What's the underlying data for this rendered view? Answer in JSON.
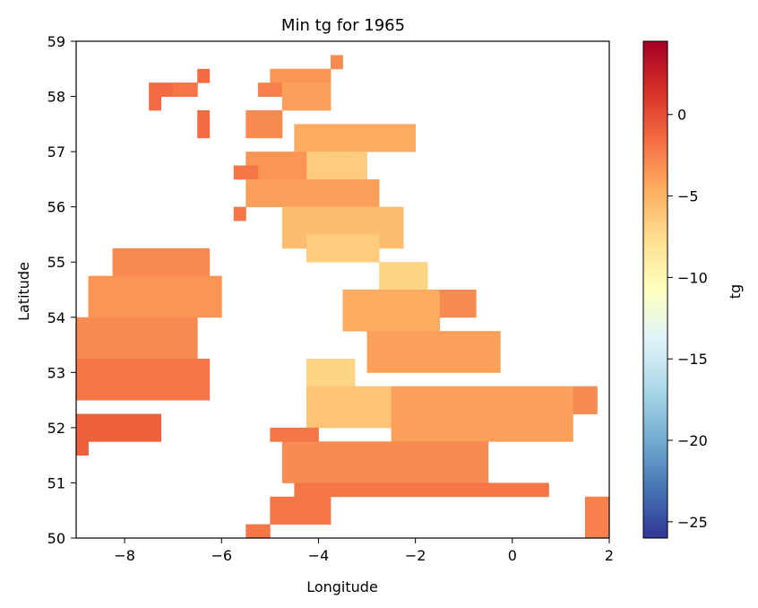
{
  "chart_data": {
    "type": "heatmap",
    "title": "Min tg for 1965",
    "xlabel": "Longitude",
    "ylabel": "Latitude",
    "xlim": [
      -9,
      2
    ],
    "ylim": [
      50,
      59
    ],
    "cell_size_deg": 0.25,
    "xticks": [
      {
        "value": -8,
        "label": "−8"
      },
      {
        "value": -6,
        "label": "−6"
      },
      {
        "value": -4,
        "label": "−4"
      },
      {
        "value": -2,
        "label": "−2"
      },
      {
        "value": 0,
        "label": "0"
      },
      {
        "value": 2,
        "label": "2"
      }
    ],
    "yticks": [
      {
        "value": 50,
        "label": "50"
      },
      {
        "value": 51,
        "label": "51"
      },
      {
        "value": 52,
        "label": "52"
      },
      {
        "value": 53,
        "label": "53"
      },
      {
        "value": 54,
        "label": "54"
      },
      {
        "value": 55,
        "label": "55"
      },
      {
        "value": 56,
        "label": "56"
      },
      {
        "value": 57,
        "label": "57"
      },
      {
        "value": 58,
        "label": "58"
      },
      {
        "value": 59,
        "label": "59"
      }
    ],
    "colorbar": {
      "label": "tg",
      "colormap": "RdYlBu_r",
      "vmin": -26,
      "vmax": 4.5,
      "ticks": [
        {
          "value": 0,
          "label": "0"
        },
        {
          "value": -5,
          "label": "−5"
        },
        {
          "value": -10,
          "label": "−10"
        },
        {
          "value": -15,
          "label": "−15"
        },
        {
          "value": -20,
          "label": "−20"
        },
        {
          "value": -25,
          "label": "−25"
        }
      ]
    },
    "grid": false,
    "cells": [
      {
        "lon_range": [
          -6.5,
          -6.25
        ],
        "lat_range": [
          58.25,
          58.5
        ],
        "tg": -1.5
      },
      {
        "lon_range": [
          -7.5,
          -6.5
        ],
        "lat_range": [
          58.0,
          58.25
        ],
        "tg": -1.5
      },
      {
        "lon_range": [
          -7.0,
          -6.5
        ],
        "lat_range": [
          58.0,
          58.25
        ],
        "tg": -2.0
      },
      {
        "lon_range": [
          -7.5,
          -7.25
        ],
        "lat_range": [
          57.75,
          58.0
        ],
        "tg": -1.5
      },
      {
        "lon_range": [
          -6.5,
          -6.25
        ],
        "lat_range": [
          57.5,
          57.75
        ],
        "tg": -1.5
      },
      {
        "lon_range": [
          -6.5,
          -6.25
        ],
        "lat_range": [
          57.25,
          57.5
        ],
        "tg": -1.5
      },
      {
        "lon_range": [
          -5.0,
          -3.75
        ],
        "lat_range": [
          58.25,
          58.5
        ],
        "tg": -3.5
      },
      {
        "lon_range": [
          -3.75,
          -3.5
        ],
        "lat_range": [
          58.5,
          58.75
        ],
        "tg": -3.0
      },
      {
        "lon_range": [
          -5.25,
          -4.75
        ],
        "lat_range": [
          58.0,
          58.25
        ],
        "tg": -2.5
      },
      {
        "lon_range": [
          -4.75,
          -3.75
        ],
        "lat_range": [
          57.75,
          58.25
        ],
        "tg": -4.0
      },
      {
        "lon_range": [
          -5.5,
          -4.75
        ],
        "lat_range": [
          57.25,
          57.75
        ],
        "tg": -3.0
      },
      {
        "lon_range": [
          -4.5,
          -2.0
        ],
        "lat_range": [
          57.0,
          57.5
        ],
        "tg": -4.5
      },
      {
        "lon_range": [
          -3.75,
          -3.25
        ],
        "lat_range": [
          56.75,
          57.0
        ],
        "tg": -8.0
      },
      {
        "lon_range": [
          -4.25,
          -3.0
        ],
        "lat_range": [
          56.5,
          57.0
        ],
        "tg": -6.5
      },
      {
        "lon_range": [
          -5.5,
          -4.25
        ],
        "lat_range": [
          56.5,
          57.0
        ],
        "tg": -3.5
      },
      {
        "lon_range": [
          -5.75,
          -5.25
        ],
        "lat_range": [
          56.5,
          56.75
        ],
        "tg": -2.0
      },
      {
        "lon_range": [
          -5.5,
          -2.75
        ],
        "lat_range": [
          56.0,
          56.5
        ],
        "tg": -4.0
      },
      {
        "lon_range": [
          -5.75,
          -5.5
        ],
        "lat_range": [
          55.75,
          56.0
        ],
        "tg": -2.0
      },
      {
        "lon_range": [
          -4.75,
          -2.25
        ],
        "lat_range": [
          55.25,
          56.0
        ],
        "tg": -5.5
      },
      {
        "lon_range": [
          -4.25,
          -2.75
        ],
        "lat_range": [
          55.0,
          55.5
        ],
        "tg": -6.5
      },
      {
        "lon_range": [
          -2.75,
          -1.75
        ],
        "lat_range": [
          54.25,
          55.0
        ],
        "tg": -7.0
      },
      {
        "lon_range": [
          -3.5,
          -1.5
        ],
        "lat_range": [
          53.75,
          54.5
        ],
        "tg": -4.5
      },
      {
        "lon_range": [
          -1.5,
          -0.75
        ],
        "lat_range": [
          54.0,
          54.5
        ],
        "tg": -3.0
      },
      {
        "lon_range": [
          -3.0,
          -0.25
        ],
        "lat_range": [
          53.0,
          53.75
        ],
        "tg": -4.0
      },
      {
        "lon_range": [
          -4.25,
          -3.25
        ],
        "lat_range": [
          52.5,
          53.25
        ],
        "tg": -7.0
      },
      {
        "lon_range": [
          -4.25,
          -2.5
        ],
        "lat_range": [
          52.0,
          52.75
        ],
        "tg": -6.0
      },
      {
        "lon_range": [
          -2.5,
          1.25
        ],
        "lat_range": [
          51.75,
          52.75
        ],
        "tg": -4.0
      },
      {
        "lon_range": [
          1.25,
          1.75
        ],
        "lat_range": [
          52.25,
          52.75
        ],
        "tg": -3.0
      },
      {
        "lon_range": [
          -4.75,
          -0.5
        ],
        "lat_range": [
          51.0,
          51.75
        ],
        "tg": -3.0
      },
      {
        "lon_range": [
          -5.0,
          -4.0
        ],
        "lat_range": [
          51.75,
          52.0
        ],
        "tg": -2.0
      },
      {
        "lon_range": [
          -4.5,
          0.75
        ],
        "lat_range": [
          50.75,
          51.0
        ],
        "tg": -2.0
      },
      {
        "lon_range": [
          -5.0,
          -3.75
        ],
        "lat_range": [
          50.25,
          50.75
        ],
        "tg": -2.0
      },
      {
        "lon_range": [
          -5.5,
          -5.0
        ],
        "lat_range": [
          50.0,
          50.25
        ],
        "tg": -2.0
      },
      {
        "lon_range": [
          1.5,
          2.0
        ],
        "lat_range": [
          50.0,
          50.75
        ],
        "tg": -2.5
      },
      {
        "lon_range": [
          -8.25,
          -6.25
        ],
        "lat_range": [
          54.75,
          55.25
        ],
        "tg": -3.0
      },
      {
        "lon_range": [
          -8.75,
          -6.0
        ],
        "lat_range": [
          54.0,
          54.75
        ],
        "tg": -3.5
      },
      {
        "lon_range": [
          -9.0,
          -6.5
        ],
        "lat_range": [
          53.25,
          54.0
        ],
        "tg": -3.0
      },
      {
        "lon_range": [
          -9.0,
          -6.25
        ],
        "lat_range": [
          52.5,
          53.25
        ],
        "tg": -2.0
      },
      {
        "lon_range": [
          -9.0,
          -7.25
        ],
        "lat_range": [
          51.75,
          52.25
        ],
        "tg": -1.0
      },
      {
        "lon_range": [
          -9.0,
          -8.75
        ],
        "lat_range": [
          51.5,
          51.75
        ],
        "tg": -1.0
      }
    ]
  }
}
